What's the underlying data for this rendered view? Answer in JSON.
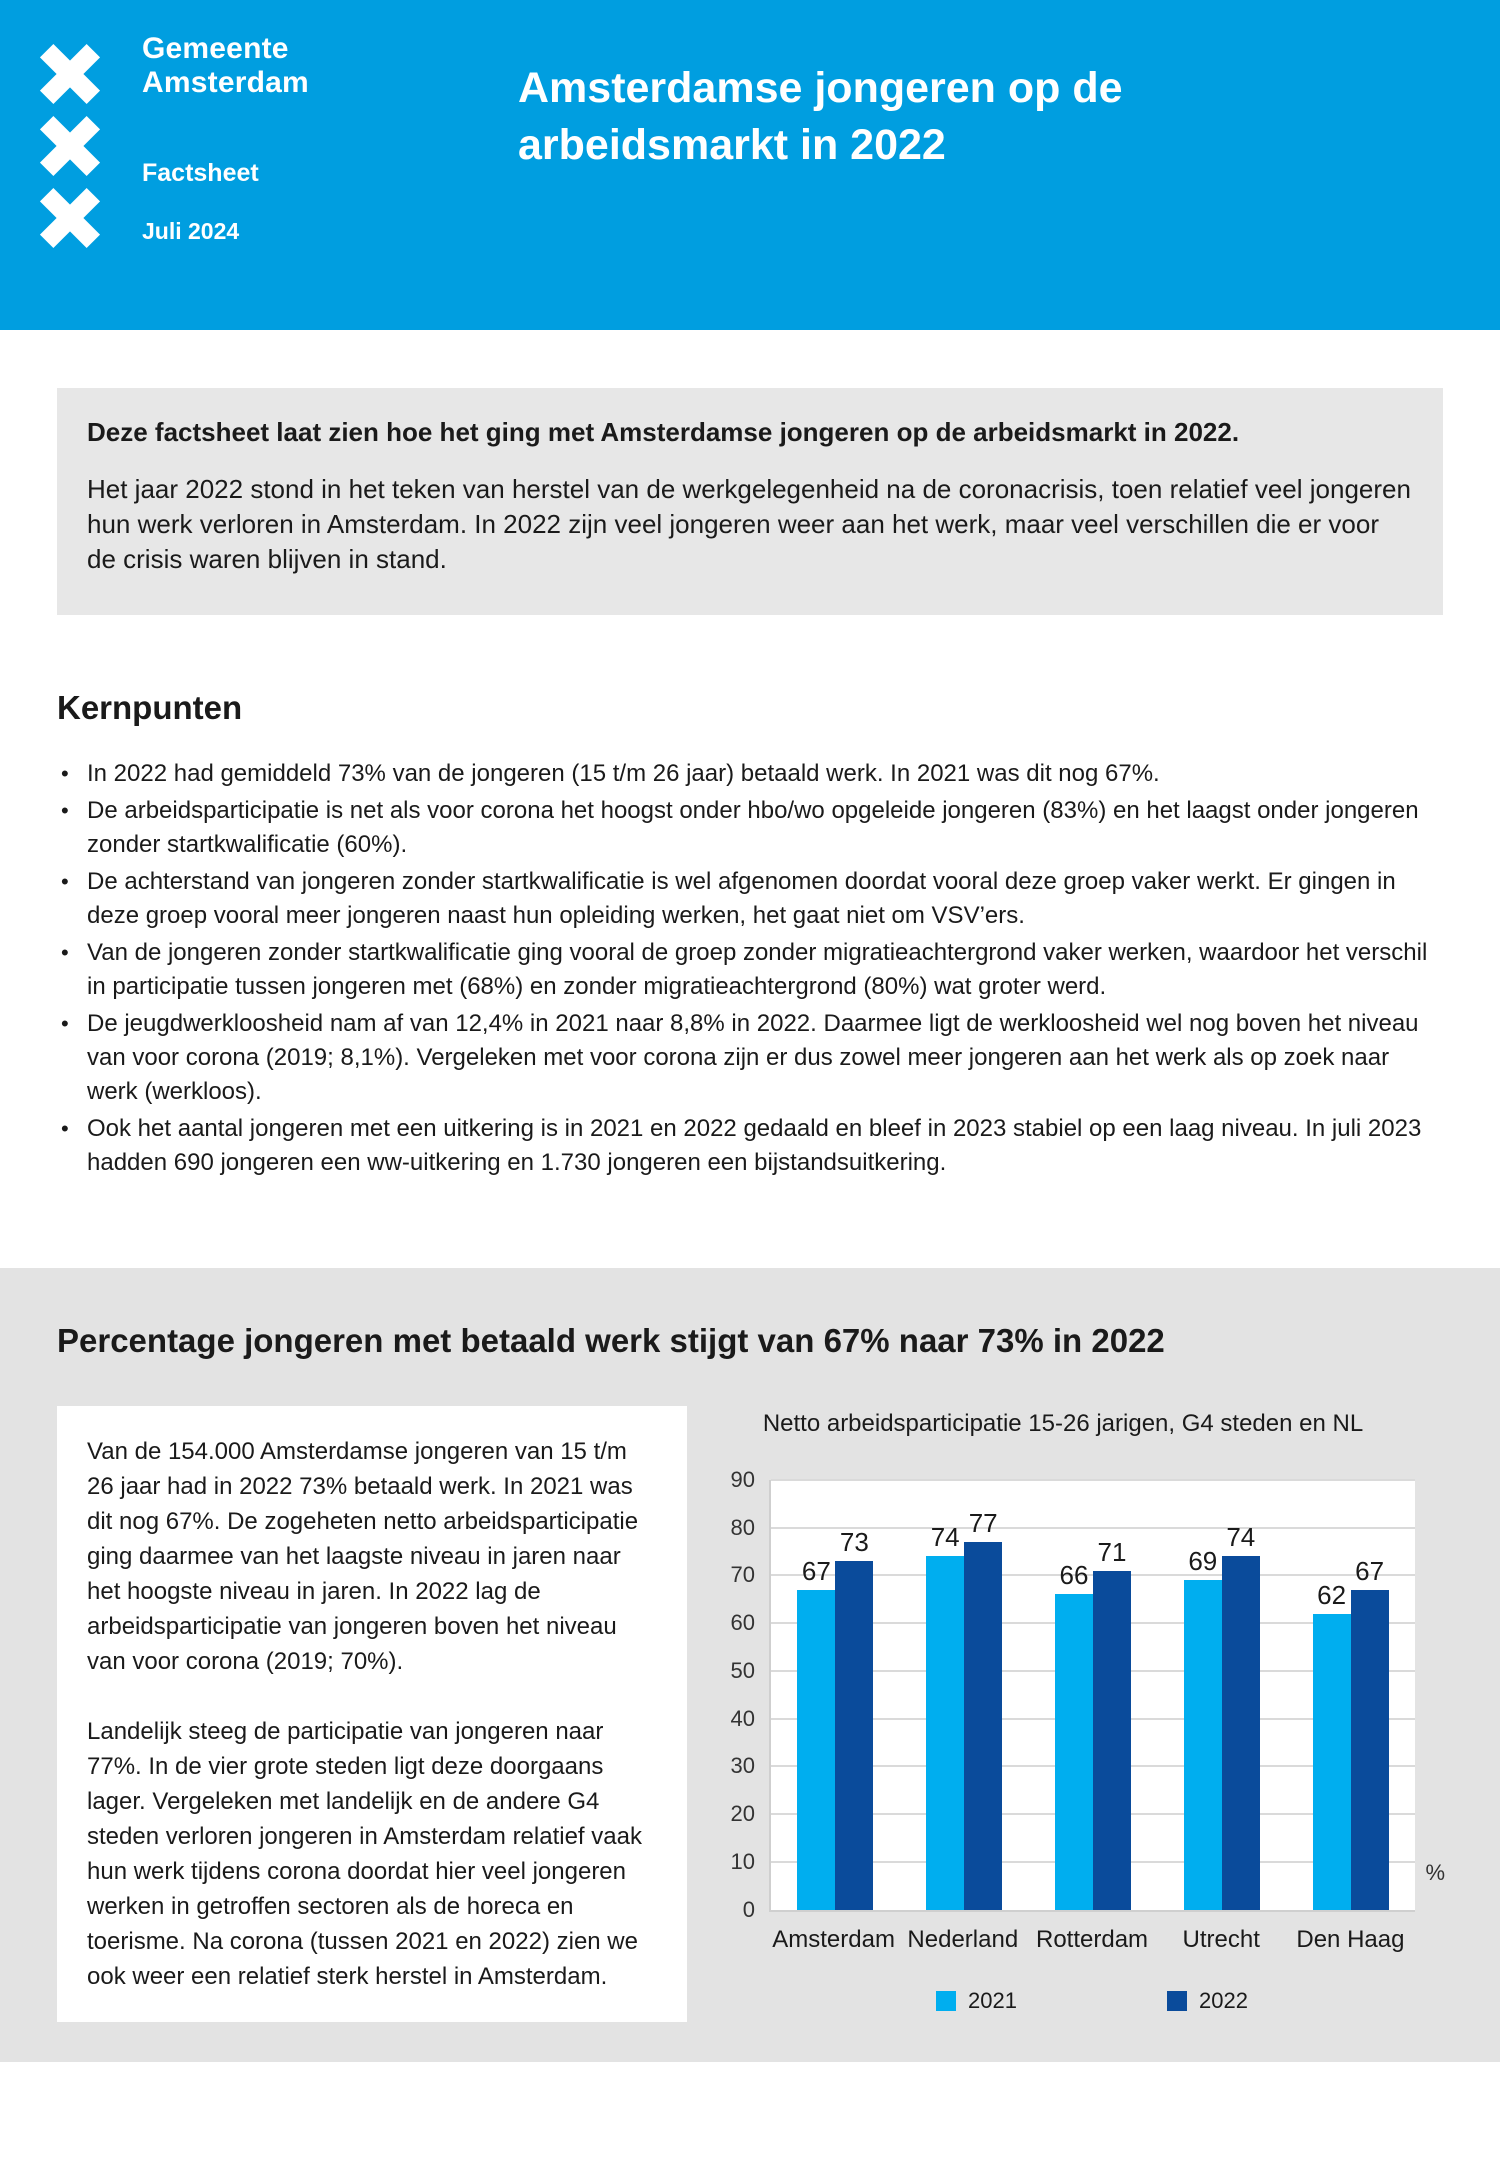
{
  "header": {
    "org_line1": "Gemeente",
    "org_line2": "Amsterdam",
    "doc_type": "Factsheet",
    "date": "Juli 2024",
    "title": "Amsterdamse jongeren op de arbeidsmarkt in 2022"
  },
  "intro": {
    "lead": "Deze factsheet laat zien hoe het ging met Amsterdamse jongeren op de arbeidsmarkt in 2022.",
    "body": "Het jaar 2022 stond in het teken van herstel van de werkgelegenheid na de coronacrisis, toen relatief veel jongeren hun werk verloren in Amsterdam. In 2022 zijn veel jongeren weer aan het werk, maar veel verschillen die er voor de crisis waren blijven in stand."
  },
  "kernpunten": {
    "heading": "Kernpunten",
    "bullets": [
      "In 2022 had gemiddeld 73% van de jongeren (15 t/m 26 jaar) betaald werk. In 2021 was dit nog 67%.",
      "De arbeidsparticipatie is net als voor corona het hoogst onder hbo/wo opgeleide jongeren (83%) en het laagst onder jongeren zonder startkwalificatie (60%).",
      "De achterstand van jongeren zonder startkwalificatie is wel afgenomen doordat vooral deze groep vaker werkt. Er gingen in deze groep vooral meer jongeren naast hun opleiding werken, het gaat niet om VSV’ers.",
      "Van de jongeren zonder startkwalificatie ging vooral de groep zonder migratieachtergrond vaker werken, waardoor het verschil in participatie tussen jongeren met (68%) en zonder migratieachtergrond (80%) wat groter werd.",
      "De jeugdwerkloosheid nam af van 12,4% in 2021 naar 8,8% in 2022. Daarmee ligt de werkloosheid wel nog boven het niveau van voor corona (2019; 8,1%). Vergeleken met voor corona zijn er dus zowel meer jongeren aan het werk als op zoek naar werk (werkloos).",
      "Ook het aantal jongeren met een uitkering is in 2021 en 2022 gedaald en bleef in 2023 stabiel op een laag niveau. In juli 2023 hadden 690 jongeren een ww-uitkering en 1.730 jongeren een bijstandsuitkering."
    ]
  },
  "section": {
    "heading": "Percentage jongeren met betaald werk stijgt van 67% naar 73% in 2022",
    "paragraphs": [
      "Van de 154.000 Amsterdamse jongeren van 15 t/m 26 jaar had in 2022 73% betaald werk. In 2021 was dit nog 67%. De zogeheten netto arbeidsparticipatie ging daarmee van het laagste niveau in jaren naar het hoogste niveau in jaren. In 2022 lag de arbeidsparticipatie van jongeren boven het niveau van voor corona (2019; 70%).",
      "Landelijk steeg de participatie van jongeren naar 77%. In de vier grote steden ligt deze doorgaans lager. Vergeleken met landelijk en de andere G4 steden verloren jongeren in Amsterdam relatief vaak hun werk tijdens corona doordat hier veel jongeren werken in getroffen sectoren als de horeca en toerisme. Na corona (tussen 2021 en 2022) zien we ook weer een relatief sterk herstel in Amsterdam."
    ]
  },
  "chart_data": {
    "type": "bar",
    "title": "Netto arbeidsparticipatie 15-26 jarigen, G4 steden en NL",
    "categories": [
      "Amsterdam",
      "Nederland",
      "Rotterdam",
      "Utrecht",
      "Den Haag"
    ],
    "series": [
      {
        "name": "2021",
        "color": "#00aeef",
        "values": [
          67,
          74,
          66,
          69,
          62
        ]
      },
      {
        "name": "2022",
        "color": "#0a4b9b",
        "values": [
          73,
          77,
          71,
          74,
          67
        ]
      }
    ],
    "ylim": [
      0,
      90
    ],
    "yticks": [
      0,
      10,
      20,
      30,
      40,
      50,
      60,
      70,
      80,
      90
    ],
    "unit_label": "%",
    "grid": true,
    "legend_position": "bottom"
  },
  "colors": {
    "header_blue": "#009ee0",
    "bar_2021_light_blue": "#00aeef",
    "bar_2022_dark_blue": "#0a4b9b",
    "intro_box_gray": "#e7e7e7",
    "section_bg_gray": "#e3e3e3"
  }
}
